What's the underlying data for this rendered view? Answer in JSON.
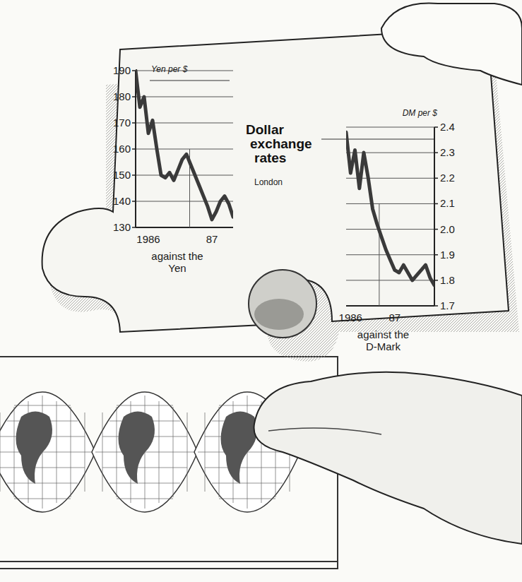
{
  "chart_data": [
    {
      "type": "line",
      "title": "Dollar exchange rates",
      "subtitle": "London",
      "y_label": "Yen per $",
      "x_label": "against the Yen",
      "categories": [
        null,
        null,
        null,
        "1986",
        null,
        null,
        null,
        null,
        null,
        null,
        null,
        null,
        null,
        null,
        null,
        null,
        null,
        null,
        "87",
        null,
        null,
        null,
        null,
        null
      ],
      "values": [
        190,
        176,
        180,
        166,
        171,
        160,
        150,
        149,
        151,
        148,
        152,
        156,
        158,
        154,
        150,
        146,
        142,
        138,
        133,
        136,
        140,
        142,
        139,
        134
      ],
      "color": "#3a3a3a",
      "ylim": [
        130,
        190
      ],
      "yticks": [
        130,
        140,
        150,
        160,
        170,
        180,
        190
      ],
      "grid": true
    },
    {
      "type": "line",
      "y_label": "DM per $",
      "x_label": "against the D-Mark",
      "categories": [
        null,
        "1986",
        null,
        null,
        null,
        null,
        null,
        null,
        null,
        null,
        null,
        "87",
        null,
        null,
        null,
        null,
        null,
        null,
        null,
        null,
        null
      ],
      "values": [
        2.38,
        2.22,
        2.31,
        2.16,
        2.3,
        2.2,
        2.08,
        2.02,
        1.97,
        1.92,
        1.88,
        1.84,
        1.83,
        1.86,
        1.83,
        1.8,
        1.82,
        1.84,
        1.86,
        1.81,
        1.78
      ],
      "color": "#3a3a3a",
      "ylim": [
        1.7,
        2.4
      ],
      "yticks": [
        1.7,
        1.8,
        1.9,
        {
          "value": 2,
          "label": "2.0"
        },
        2.1,
        2.2,
        2.3,
        2.4
      ],
      "grid": true
    }
  ]
}
